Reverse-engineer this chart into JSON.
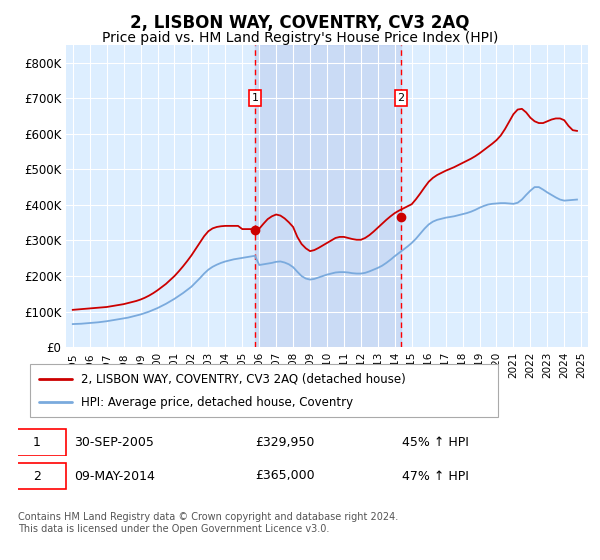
{
  "title": "2, LISBON WAY, COVENTRY, CV3 2AQ",
  "subtitle": "Price paid vs. HM Land Registry's House Price Index (HPI)",
  "title_fontsize": 12,
  "subtitle_fontsize": 10,
  "sale1_date": 2005.75,
  "sale1_price": 329950,
  "sale1_label": "1",
  "sale1_text": "30-SEP-2005",
  "sale1_amount": "£329,950",
  "sale1_hpi": "45% ↑ HPI",
  "sale2_date": 2014.36,
  "sale2_price": 365000,
  "sale2_label": "2",
  "sale2_text": "09-MAY-2014",
  "sale2_amount": "£365,000",
  "sale2_hpi": "47% ↑ HPI",
  "legend_line1": "2, LISBON WAY, COVENTRY, CV3 2AQ (detached house)",
  "legend_line2": "HPI: Average price, detached house, Coventry",
  "footer": "Contains HM Land Registry data © Crown copyright and database right 2024.\nThis data is licensed under the Open Government Licence v3.0.",
  "ylim": [
    0,
    850000
  ],
  "yticks": [
    0,
    100000,
    200000,
    300000,
    400000,
    500000,
    600000,
    700000,
    800000
  ],
  "ytick_labels": [
    "£0",
    "£100K",
    "£200K",
    "£300K",
    "£400K",
    "£500K",
    "£600K",
    "£700K",
    "£800K"
  ],
  "xlim_left": 1994.6,
  "xlim_right": 2025.4,
  "red_color": "#cc0000",
  "blue_color": "#7aaadd",
  "bg_color": "#ddeeff",
  "grid_color": "#ffffff",
  "span_color": "#bbccee",
  "hpi_years": [
    1995.0,
    1995.25,
    1995.5,
    1995.75,
    1996.0,
    1996.25,
    1996.5,
    1996.75,
    1997.0,
    1997.25,
    1997.5,
    1997.75,
    1998.0,
    1998.25,
    1998.5,
    1998.75,
    1999.0,
    1999.25,
    1999.5,
    1999.75,
    2000.0,
    2000.25,
    2000.5,
    2000.75,
    2001.0,
    2001.25,
    2001.5,
    2001.75,
    2002.0,
    2002.25,
    2002.5,
    2002.75,
    2003.0,
    2003.25,
    2003.5,
    2003.75,
    2004.0,
    2004.25,
    2004.5,
    2004.75,
    2005.0,
    2005.25,
    2005.5,
    2005.75,
    2006.0,
    2006.25,
    2006.5,
    2006.75,
    2007.0,
    2007.25,
    2007.5,
    2007.75,
    2008.0,
    2008.25,
    2008.5,
    2008.75,
    2009.0,
    2009.25,
    2009.5,
    2009.75,
    2010.0,
    2010.25,
    2010.5,
    2010.75,
    2011.0,
    2011.25,
    2011.5,
    2011.75,
    2012.0,
    2012.25,
    2012.5,
    2012.75,
    2013.0,
    2013.25,
    2013.5,
    2013.75,
    2014.0,
    2014.25,
    2014.5,
    2014.75,
    2015.0,
    2015.25,
    2015.5,
    2015.75,
    2016.0,
    2016.25,
    2016.5,
    2016.75,
    2017.0,
    2017.25,
    2017.5,
    2017.75,
    2018.0,
    2018.25,
    2018.5,
    2018.75,
    2019.0,
    2019.25,
    2019.5,
    2019.75,
    2020.0,
    2020.25,
    2020.5,
    2020.75,
    2021.0,
    2021.25,
    2021.5,
    2021.75,
    2022.0,
    2022.25,
    2022.5,
    2022.75,
    2023.0,
    2023.25,
    2023.5,
    2023.75,
    2024.0,
    2024.25,
    2024.5,
    2024.75
  ],
  "hpi_values": [
    65000,
    65500,
    66000,
    67000,
    68000,
    69000,
    70000,
    71500,
    73000,
    75000,
    77000,
    79000,
    81000,
    83000,
    86000,
    89000,
    92000,
    96000,
    100000,
    105000,
    110000,
    116000,
    122000,
    129000,
    136000,
    144000,
    152000,
    161000,
    170000,
    182000,
    194000,
    207000,
    218000,
    226000,
    232000,
    237000,
    241000,
    244000,
    247000,
    249000,
    251000,
    253000,
    255000,
    257000,
    231000,
    233000,
    235000,
    237000,
    240000,
    241000,
    238000,
    233000,
    225000,
    212000,
    200000,
    193000,
    190000,
    192000,
    196000,
    200000,
    204000,
    207000,
    210000,
    211000,
    211000,
    210000,
    208000,
    207000,
    207000,
    209000,
    213000,
    218000,
    223000,
    229000,
    237000,
    246000,
    256000,
    265000,
    274000,
    283000,
    293000,
    305000,
    319000,
    333000,
    345000,
    353000,
    358000,
    361000,
    364000,
    366000,
    368000,
    371000,
    374000,
    377000,
    381000,
    386000,
    392000,
    397000,
    401000,
    403000,
    404000,
    405000,
    405000,
    404000,
    403000,
    406000,
    415000,
    428000,
    440000,
    450000,
    450000,
    443000,
    435000,
    428000,
    421000,
    415000,
    412000,
    413000,
    414000,
    415000
  ],
  "red_years": [
    1995.0,
    1995.25,
    1995.5,
    1995.75,
    1996.0,
    1996.25,
    1996.5,
    1996.75,
    1997.0,
    1997.25,
    1997.5,
    1997.75,
    1998.0,
    1998.25,
    1998.5,
    1998.75,
    1999.0,
    1999.25,
    1999.5,
    1999.75,
    2000.0,
    2000.25,
    2000.5,
    2000.75,
    2001.0,
    2001.25,
    2001.5,
    2001.75,
    2002.0,
    2002.25,
    2002.5,
    2002.75,
    2003.0,
    2003.25,
    2003.5,
    2003.75,
    2004.0,
    2004.25,
    2004.5,
    2004.75,
    2005.0,
    2005.25,
    2005.5,
    2005.75,
    2006.0,
    2006.25,
    2006.5,
    2006.75,
    2007.0,
    2007.25,
    2007.5,
    2007.75,
    2008.0,
    2008.25,
    2008.5,
    2008.75,
    2009.0,
    2009.25,
    2009.5,
    2009.75,
    2010.0,
    2010.25,
    2010.5,
    2010.75,
    2011.0,
    2011.25,
    2011.5,
    2011.75,
    2012.0,
    2012.25,
    2012.5,
    2012.75,
    2013.0,
    2013.25,
    2013.5,
    2013.75,
    2014.0,
    2014.25,
    2014.5,
    2014.75,
    2015.0,
    2015.25,
    2015.5,
    2015.75,
    2016.0,
    2016.25,
    2016.5,
    2016.75,
    2017.0,
    2017.25,
    2017.5,
    2017.75,
    2018.0,
    2018.25,
    2018.5,
    2018.75,
    2019.0,
    2019.25,
    2019.5,
    2019.75,
    2020.0,
    2020.25,
    2020.5,
    2020.75,
    2021.0,
    2021.25,
    2021.5,
    2021.75,
    2022.0,
    2022.25,
    2022.5,
    2022.75,
    2023.0,
    2023.25,
    2023.5,
    2023.75,
    2024.0,
    2024.25,
    2024.5,
    2024.75
  ],
  "red_values": [
    105000,
    106000,
    107000,
    108000,
    109000,
    110000,
    111000,
    112000,
    113000,
    115000,
    117000,
    119000,
    121000,
    124000,
    127000,
    130000,
    134000,
    139000,
    145000,
    152000,
    160000,
    169000,
    178000,
    189000,
    200000,
    213000,
    227000,
    242000,
    258000,
    276000,
    294000,
    312000,
    326000,
    334000,
    338000,
    340000,
    341000,
    341000,
    341000,
    341000,
    332000,
    332000,
    332000,
    329950,
    333000,
    347000,
    360000,
    368000,
    373000,
    370000,
    362000,
    351000,
    338000,
    310000,
    290000,
    278000,
    270000,
    273000,
    279000,
    286000,
    293000,
    300000,
    307000,
    310000,
    310000,
    307000,
    304000,
    302000,
    302000,
    307000,
    315000,
    325000,
    336000,
    347000,
    358000,
    368000,
    377000,
    384000,
    390000,
    396000,
    402000,
    416000,
    432000,
    449000,
    465000,
    476000,
    484000,
    490000,
    496000,
    501000,
    506000,
    512000,
    518000,
    524000,
    530000,
    537000,
    545000,
    554000,
    563000,
    572000,
    582000,
    595000,
    613000,
    634000,
    655000,
    668000,
    670000,
    660000,
    645000,
    635000,
    630000,
    630000,
    635000,
    640000,
    643000,
    643000,
    638000,
    622000,
    610000,
    608000
  ]
}
